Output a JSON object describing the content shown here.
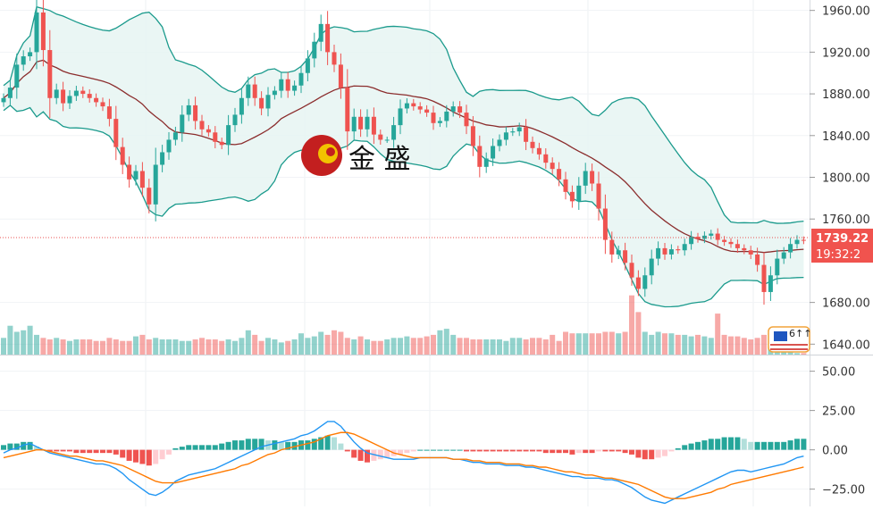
{
  "watermark": {
    "text": "金 盛"
  },
  "price_axis": {
    "ticks": [
      "1960.00",
      "1920.00",
      "1880.00",
      "1840.00",
      "1800.00",
      "1760.00",
      "1680.00",
      "1640.00"
    ],
    "last_price": "1739.22",
    "countdown": "19:32:2"
  },
  "macd_axis": {
    "ticks": [
      "50.00",
      "25.00",
      "0.00",
      "−25.00"
    ]
  },
  "flag_badge": {
    "text": "6↑↑"
  },
  "colors": {
    "up": "#26a69a",
    "down": "#ef5350",
    "band": "#1a9a8c",
    "band_fill": "#e6f4f2",
    "mid_band": "#8b2d2d",
    "macd_line": "#2196f3",
    "signal_line": "#ff7a00",
    "price_tag": "#f0534e"
  },
  "chart_data": [
    {
      "type": "candlestick",
      "series": [
        {
          "name": "price",
          "values": [
            1876,
            1886,
            1908,
            1916,
            1920,
            1958,
            1922,
            1876,
            1884,
            1871,
            1878,
            1883,
            1880,
            1876,
            1872,
            1868,
            1856,
            1829,
            1812,
            1798,
            1806,
            1790,
            1774,
            1812,
            1824,
            1836,
            1843,
            1860,
            1869,
            1854,
            1846,
            1843,
            1834,
            1831,
            1850,
            1860,
            1876,
            1889,
            1876,
            1866,
            1879,
            1883,
            1894,
            1883,
            1888,
            1900,
            1914,
            1930,
            1947,
            1920,
            1908,
            1886,
            1844,
            1858,
            1846,
            1858,
            1841,
            1836,
            1836,
            1850,
            1866,
            1871,
            1868,
            1865,
            1862,
            1852,
            1854,
            1863,
            1868,
            1862,
            1849,
            1830,
            1810,
            1818,
            1830,
            1836,
            1843,
            1844,
            1848,
            1834,
            1828,
            1822,
            1814,
            1808,
            1798,
            1786,
            1777,
            1792,
            1806,
            1794,
            1770,
            1740,
            1726,
            1730,
            1718,
            1704,
            1693,
            1706,
            1722,
            1732,
            1726,
            1731,
            1730,
            1736,
            1743,
            1741,
            1744,
            1746,
            1740,
            1738,
            1736,
            1732,
            1730,
            1726,
            1716,
            1690,
            1706,
            1722,
            1728,
            1736,
            1740,
            1739.22
          ]
        }
      ],
      "ylim": [
        1630,
        1970
      ]
    },
    {
      "type": "bar",
      "series": [
        {
          "name": "volume",
          "values": [
            0.55,
            0.95,
            0.75,
            0.8,
            0.95,
            0.65,
            0.55,
            0.5,
            0.55,
            0.5,
            0.45,
            0.5,
            0.5,
            0.5,
            0.45,
            0.45,
            0.55,
            0.5,
            0.45,
            0.45,
            0.6,
            0.65,
            0.5,
            0.55,
            0.5,
            0.5,
            0.5,
            0.45,
            0.45,
            0.5,
            0.55,
            0.5,
            0.5,
            0.45,
            0.5,
            0.45,
            0.55,
            0.8,
            0.65,
            0.45,
            0.55,
            0.5,
            0.4,
            0.45,
            0.5,
            0.7,
            0.55,
            0.6,
            0.75,
            0.65,
            0.8,
            0.75,
            0.55,
            0.5,
            0.6,
            0.5,
            0.45,
            0.45,
            0.5,
            0.55,
            0.55,
            0.6,
            0.55,
            0.55,
            0.6,
            0.65,
            0.8,
            0.85,
            0.65,
            0.55,
            0.55,
            0.5,
            0.5,
            0.5,
            0.5,
            0.5,
            0.45,
            0.55,
            0.55,
            0.5,
            0.55,
            0.55,
            0.5,
            0.65,
            0.45,
            0.75,
            0.7,
            0.7,
            0.7,
            0.7,
            0.7,
            0.75,
            0.75,
            0.7,
            0.75,
            1.95,
            1.4,
            0.75,
            0.65,
            0.75,
            0.7,
            0.7,
            0.65,
            0.65,
            0.6,
            0.65,
            0.6,
            0.55,
            1.35,
            0.65,
            0.6,
            0.6,
            0.55,
            0.5,
            0.55,
            0.65,
            0.7,
            0.65,
            0.6,
            0.25,
            0.05,
            0.05
          ]
        }
      ]
    },
    {
      "type": "line",
      "series": [
        {
          "name": "macd",
          "values": [
            -2,
            0,
            1,
            3,
            4,
            2,
            0,
            -2,
            -3,
            -4,
            -5,
            -6,
            -7,
            -8,
            -9,
            -9,
            -10,
            -12,
            -15,
            -19,
            -22,
            -25,
            -28,
            -29,
            -27,
            -24,
            -20,
            -18,
            -16,
            -15,
            -14,
            -13,
            -12,
            -10,
            -8,
            -6,
            -4,
            -2,
            0,
            2,
            3,
            4,
            5,
            6,
            7,
            9,
            10,
            12,
            15,
            18,
            18,
            15,
            10,
            5,
            1,
            -2,
            -3,
            -4,
            -5,
            -6,
            -6,
            -6,
            -6,
            -5,
            -5,
            -5,
            -5,
            -5,
            -6,
            -6,
            -7,
            -8,
            -8,
            -9,
            -9,
            -9,
            -10,
            -10,
            -10,
            -11,
            -11,
            -12,
            -13,
            -14,
            -15,
            -16,
            -17,
            -17,
            -18,
            -18,
            -18,
            -19,
            -19,
            -20,
            -22,
            -24,
            -27,
            -30,
            -32,
            -33,
            -34,
            -32,
            -30,
            -28,
            -26,
            -24,
            -22,
            -20,
            -18,
            -16,
            -14,
            -13,
            -13,
            -14,
            -13,
            -12,
            -11,
            -10,
            -9,
            -7,
            -5,
            -4
          ]
        },
        {
          "name": "signal",
          "values": [
            -5,
            -4,
            -3,
            -2,
            -1,
            0,
            0,
            -1,
            -2,
            -3,
            -4,
            -4,
            -5,
            -6,
            -7,
            -7,
            -8,
            -9,
            -10,
            -12,
            -14,
            -16,
            -18,
            -20,
            -21,
            -21,
            -21,
            -20,
            -19,
            -18,
            -17,
            -16,
            -15,
            -14,
            -13,
            -12,
            -10,
            -9,
            -7,
            -5,
            -3,
            -2,
            0,
            1,
            2,
            3,
            4,
            5,
            7,
            9,
            10,
            11,
            11,
            10,
            8,
            6,
            4,
            2,
            0,
            -2,
            -3,
            -4,
            -5,
            -5,
            -5,
            -5,
            -5,
            -5,
            -6,
            -6,
            -6,
            -7,
            -7,
            -8,
            -8,
            -8,
            -9,
            -9,
            -9,
            -10,
            -10,
            -11,
            -11,
            -12,
            -13,
            -14,
            -14,
            -15,
            -16,
            -16,
            -17,
            -18,
            -18,
            -19,
            -20,
            -21,
            -22,
            -24,
            -26,
            -28,
            -30,
            -31,
            -31,
            -31,
            -30,
            -29,
            -28,
            -27,
            -25,
            -24,
            -22,
            -21,
            -20,
            -19,
            -18,
            -17,
            -16,
            -15,
            -14,
            -13,
            -12,
            -11
          ]
        }
      ],
      "ylim": [
        -36,
        60
      ]
    }
  ]
}
